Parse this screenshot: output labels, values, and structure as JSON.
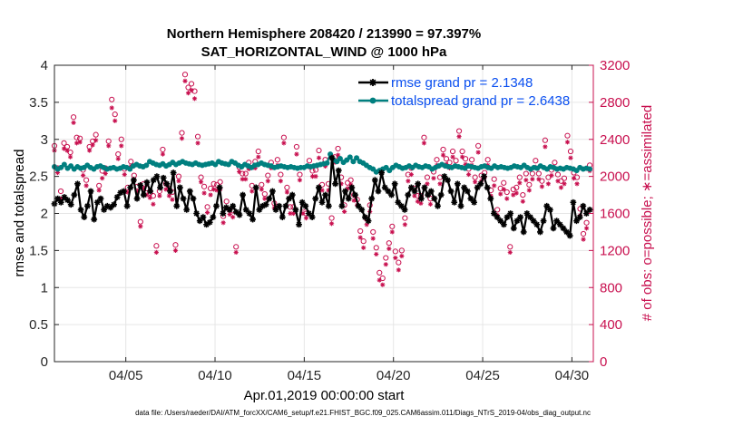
{
  "chart_data": {
    "type": "line",
    "title": "Northern Hemisphere 208420 / 213990 = 97.397%",
    "subtitle": "SAT_HORIZONTAL_WIND @ 1000 hPa",
    "xlabel": "Apr.01,2019 00:00:00 start",
    "ylabel": "rmse and totalspread",
    "ylabel_right": "# of obs: o=possible; ∗=assimilated",
    "footnote": "data file: /Users/raeder/DAI/ATM_forcXX/CAM6_setup/f.e21.FHIST_BGC.f09_025.CAM6assim.011/Diags_NTrS_2019-04/obs_diag_output.nc",
    "xlim": [
      1.0,
      31.2
    ],
    "ylim": [
      0,
      4
    ],
    "ylim_right": [
      0,
      3200
    ],
    "x_ticks": [
      5,
      10,
      15,
      20,
      25,
      30
    ],
    "x_tick_labels": [
      "04/05",
      "04/10",
      "04/15",
      "04/20",
      "04/25",
      "04/30"
    ],
    "y_ticks": [
      0,
      0.5,
      1,
      1.5,
      2,
      2.5,
      3,
      3.5,
      4
    ],
    "y_tick_labels": [
      "0",
      "0.5",
      "1",
      "1.5",
      "2",
      "2.5",
      "3",
      "3.5",
      "4"
    ],
    "y_ticks_right": [
      0,
      400,
      800,
      1200,
      1600,
      2000,
      2400,
      2800,
      3200
    ],
    "y_tick_labels_right": [
      "0",
      "400",
      "800",
      "1200",
      "1600",
      "2000",
      "2400",
      "2800",
      "3200"
    ],
    "grid": true,
    "legend_position": "top-right",
    "series": [
      {
        "name": "rmse grand pr = 2.1348",
        "color": "#000000",
        "marker": "asterisk",
        "axis": "left",
        "values": [
          2.13,
          2.2,
          2.15,
          2.22,
          2.18,
          2.12,
          2.25,
          2.4,
          2.05,
          1.95,
          2.1,
          2.3,
          1.92,
          2.15,
          2.2,
          2.05,
          2.1,
          2.08,
          2.12,
          2.22,
          2.28,
          2.3,
          2.1,
          2.35,
          2.45,
          2.2,
          2.38,
          2.25,
          2.42,
          2.3,
          2.45,
          2.5,
          2.35,
          2.48,
          2.4,
          2.3,
          2.55,
          2.1,
          2.35,
          2.2,
          2.05,
          2.3,
          2.2,
          2.0,
          1.9,
          1.95,
          1.85,
          1.88,
          1.95,
          2.1,
          2.35,
          2.0,
          2.08,
          2.05,
          2.1,
          2.02,
          1.98,
          2.25,
          2.05,
          2.0,
          1.92,
          2.35,
          2.05,
          2.1,
          2.12,
          2.2,
          2.3,
          2.05,
          2.1,
          1.95,
          2.1,
          2.2,
          2.25,
          2.05,
          1.85,
          2.15,
          2.1,
          2.0,
          1.95,
          2.2,
          2.35,
          2.15,
          2.25,
          2.1,
          2.75,
          2.4,
          2.58,
          2.1,
          2.3,
          2.2,
          2.35,
          2.25,
          2.1,
          2.05,
          1.95,
          1.9,
          2.2,
          2.45,
          2.3,
          2.55,
          2.35,
          2.3,
          2.25,
          2.4,
          2.15,
          2.1,
          2.05,
          2.25,
          2.35,
          2.3,
          2.4,
          2.2,
          2.35,
          2.25,
          2.3,
          2.2,
          2.1,
          2.25,
          2.5,
          2.45,
          2.3,
          2.15,
          2.4,
          2.1,
          2.35,
          2.3,
          2.2,
          2.15,
          2.35,
          2.4,
          2.5,
          2.35,
          2.2,
          2.0,
          1.95,
          1.9,
          1.85,
          1.95,
          2.0,
          1.8,
          1.9,
          1.95,
          1.75,
          2.0,
          1.95,
          1.9,
          1.85,
          1.75,
          1.9,
          2.1,
          2.05,
          1.8,
          1.9,
          1.85,
          1.8,
          1.75,
          1.7,
          2.15,
          1.9,
          1.95,
          2.1,
          2.0,
          2.05
        ]
      },
      {
        "name": "totalspread grand pr = 2.6438",
        "color": "#007f7f",
        "marker": "circle",
        "axis": "left",
        "values": [
          2.63,
          2.6,
          2.62,
          2.66,
          2.61,
          2.64,
          2.6,
          2.63,
          2.61,
          2.62,
          2.65,
          2.62,
          2.6,
          2.63,
          2.64,
          2.62,
          2.6,
          2.61,
          2.62,
          2.6,
          2.61,
          2.63,
          2.62,
          2.6,
          2.64,
          2.66,
          2.64,
          2.63,
          2.65,
          2.7,
          2.68,
          2.66,
          2.65,
          2.67,
          2.64,
          2.66,
          2.69,
          2.66,
          2.68,
          2.7,
          2.68,
          2.67,
          2.66,
          2.68,
          2.66,
          2.65,
          2.66,
          2.67,
          2.68,
          2.66,
          2.7,
          2.68,
          2.67,
          2.66,
          2.7,
          2.68,
          2.65,
          2.63,
          2.66,
          2.64,
          2.62,
          2.65,
          2.66,
          2.68,
          2.66,
          2.65,
          2.64,
          2.62,
          2.63,
          2.64,
          2.63,
          2.62,
          2.63,
          2.62,
          2.61,
          2.62,
          2.62,
          2.64,
          2.63,
          2.64,
          2.65,
          2.66,
          2.67,
          2.68,
          2.8,
          2.72,
          2.7,
          2.74,
          2.69,
          2.72,
          2.76,
          2.7,
          2.75,
          2.7,
          2.68,
          2.65,
          2.62,
          2.6,
          2.56,
          2.58,
          2.6,
          2.62,
          2.58,
          2.62,
          2.65,
          2.63,
          2.61,
          2.62,
          2.64,
          2.62,
          2.65,
          2.63,
          2.62,
          2.64,
          2.63,
          2.6,
          2.62,
          2.64,
          2.66,
          2.64,
          2.63,
          2.62,
          2.64,
          2.63,
          2.62,
          2.61,
          2.64,
          2.63,
          2.62,
          2.61,
          2.63,
          2.64,
          2.62,
          2.61,
          2.64,
          2.62,
          2.63,
          2.62,
          2.61,
          2.62,
          2.64,
          2.63,
          2.62,
          2.65,
          2.62,
          2.6,
          2.62,
          2.61,
          2.64,
          2.62,
          2.6,
          2.63,
          2.62,
          2.6,
          2.61,
          2.6,
          2.62,
          2.61,
          2.6,
          2.58,
          2.62,
          2.6,
          2.61,
          2.6
        ]
      },
      {
        "name": "obs possible",
        "color": "#c8104f",
        "marker": "open-circle",
        "axis": "right",
        "values": [
          2330,
          2090,
          1840,
          2360,
          2320,
          2260,
          2640,
          2420,
          2410,
          2070,
          1960,
          2320,
          2380,
          2450,
          1900,
          2060,
          2090,
          2380,
          2830,
          2670,
          2240,
          2400,
          2080,
          1880,
          2160,
          2010,
          1890,
          1510,
          1920,
          1870,
          1820,
          1790,
          1250,
          1840,
          2290,
          1920,
          1870,
          1830,
          1260,
          2000,
          2470,
          3100,
          2960,
          3000,
          2920,
          2430,
          1990,
          1890,
          1670,
          1870,
          1920,
          1910,
          1940,
          1570,
          1730,
          1640,
          1630,
          1240,
          2100,
          2030,
          2030,
          2150,
          1900,
          2160,
          2270,
          1910,
          1810,
          2010,
          2150,
          1710,
          2180,
          2020,
          2420,
          1880,
          1670,
          1670,
          2320,
          2020,
          1660,
          1600,
          2170,
          2060,
          2070,
          2280,
          1910,
          2180,
          1920,
          1550,
          2210,
          2300,
          1990,
          1690,
          1930,
          1960,
          1800,
          1750,
          1410,
          1300,
          1540,
          1690,
          1400,
          1230,
          960,
          900,
          1120,
          1280,
          1460,
          1190,
          1070,
          1200,
          1550,
          2020,
          2090,
          1870,
          1790,
          1790,
          2420,
          1990,
          1760,
          2050,
          2180,
          1990,
          2290,
          2190,
          2150,
          2270,
          2170,
          2490,
          2270,
          2190,
          2080,
          2180,
          1990,
          2330,
          2010,
          2040,
          2180,
          1850,
          1970,
          1640,
          1870,
          1930,
          1830,
          1240,
          1860,
          1880,
          1990,
          1800,
          2030,
          1910,
          2030,
          2170,
          2030,
          1950,
          2390,
          1990,
          2070,
          2150,
          2020,
          1950,
          1980,
          2440,
          2270,
          2040,
          1990,
          1650,
          1380,
          1500,
          2120
        ]
      },
      {
        "name": "obs assimilated",
        "color": "#c8104f",
        "marker": "asterisk",
        "axis": "right",
        "values": [
          2280,
          2040,
          1760,
          2300,
          2280,
          2210,
          2580,
          2360,
          2370,
          2010,
          1900,
          2280,
          2340,
          2390,
          1850,
          1980,
          2030,
          2330,
          2740,
          2600,
          2190,
          2330,
          2020,
          1830,
          2110,
          1960,
          1840,
          1460,
          1870,
          1800,
          1770,
          1700,
          1180,
          1790,
          2240,
          1860,
          1790,
          1750,
          1200,
          1950,
          2410,
          3030,
          2900,
          2930,
          2840,
          2360,
          1940,
          1820,
          1610,
          1800,
          1860,
          1850,
          1860,
          1500,
          1660,
          1590,
          1560,
          1180,
          2050,
          1970,
          1970,
          2080,
          1840,
          2090,
          2210,
          1860,
          1760,
          1950,
          2090,
          1660,
          2120,
          1950,
          2360,
          1830,
          1600,
          1600,
          2240,
          1960,
          1600,
          1550,
          2100,
          2000,
          2000,
          2200,
          1850,
          2110,
          1850,
          1490,
          2150,
          2230,
          1920,
          1620,
          1870,
          1910,
          1740,
          1690,
          1340,
          1230,
          1480,
          1620,
          1330,
          1160,
          880,
          830,
          1050,
          1220,
          1400,
          1120,
          990,
          1140,
          1480,
          1950,
          2020,
          1790,
          1730,
          1710,
          2360,
          1920,
          1700,
          1980,
          2120,
          1920,
          2230,
          2130,
          2090,
          2210,
          2110,
          2430,
          2210,
          2130,
          2020,
          2120,
          1940,
          2260,
          1950,
          1990,
          2120,
          1790,
          1900,
          1580,
          1810,
          1860,
          1760,
          1180,
          1800,
          1820,
          1930,
          1730,
          1960,
          1850,
          1970,
          2100,
          1970,
          1890,
          2320,
          1920,
          2010,
          2090,
          1950,
          1880,
          1920,
          2370,
          2200,
          1980,
          1920,
          1580,
          1320,
          1440,
          2060
        ]
      }
    ]
  }
}
